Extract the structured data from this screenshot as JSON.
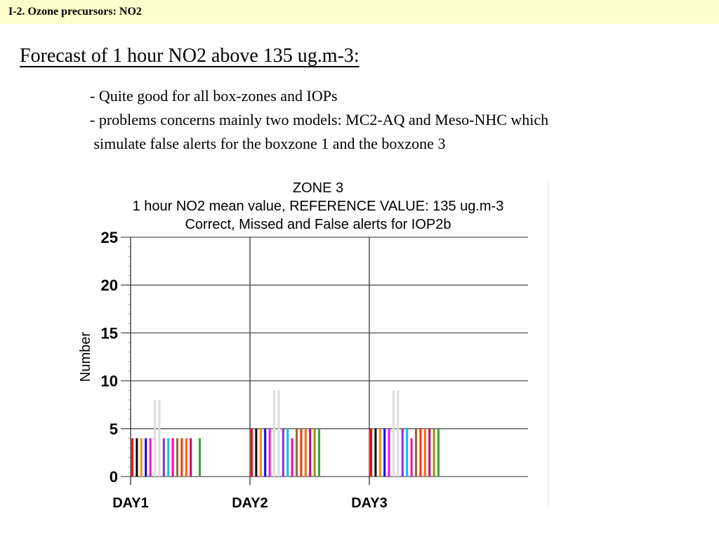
{
  "slide": {
    "header": "I-2. Ozone precursors: NO2",
    "heading": "Forecast of 1 hour NO2 above 135 ug.m-3:",
    "bullets": [
      "- Quite good for all box-zones and IOPs",
      "- problems concerns mainly two models: MC2-AQ and Meso-NHC which",
      " simulate false alerts for the boxzone 1 and the boxzone 3"
    ]
  },
  "chart_data": {
    "type": "bar",
    "title_lines": [
      "ZONE  3",
      "1 hour NO2 mean value, REFERENCE VALUE: 135 ug.m-3",
      "Correct, Missed and False alerts for IOP2b"
    ],
    "xlabel": "",
    "ylabel": "Number",
    "ylim": [
      0,
      25
    ],
    "yticks": [
      0,
      5,
      10,
      15,
      20,
      25
    ],
    "grid": true,
    "categories": [
      "DAY1",
      "DAY2",
      "DAY3"
    ],
    "bar_colors": [
      "#ff0000",
      "#000000",
      "#ff8c00",
      "#0000ff",
      "#ff00ff",
      "#dddddd",
      "#dddddd",
      "#8a2be2",
      "#00bfff",
      "#ff00aa",
      "#996633",
      "#ff3300",
      "#ff6600",
      "#d00060",
      "#aa8800",
      "#33aa33"
    ],
    "values": [
      [
        4,
        4,
        4,
        4,
        4,
        8,
        8,
        4,
        4,
        4,
        4,
        4,
        4,
        4,
        0,
        4
      ],
      [
        5,
        5,
        5,
        5,
        5,
        9,
        9,
        5,
        5,
        4,
        5,
        5,
        5,
        5,
        5,
        5
      ],
      [
        5,
        5,
        5,
        5,
        5,
        9,
        9,
        5,
        5,
        4,
        5,
        5,
        5,
        5,
        5,
        5
      ]
    ]
  }
}
